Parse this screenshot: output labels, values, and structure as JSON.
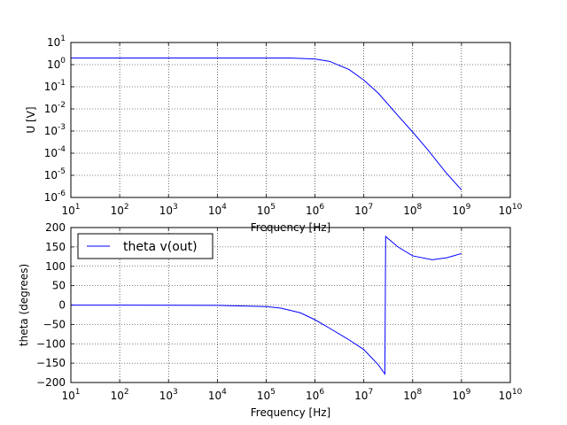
{
  "chart_data": [
    {
      "type": "line",
      "xlabel": "Frequency [Hz]",
      "ylabel": "U [V]",
      "xscale": "log",
      "yscale": "log",
      "xlim": [
        10,
        10000000000
      ],
      "ylim": [
        1e-06,
        10
      ],
      "x_ticks": [
        {
          "base": "10",
          "exp": "1"
        },
        {
          "base": "10",
          "exp": "2"
        },
        {
          "base": "10",
          "exp": "3"
        },
        {
          "base": "10",
          "exp": "4"
        },
        {
          "base": "10",
          "exp": "5"
        },
        {
          "base": "10",
          "exp": "6"
        },
        {
          "base": "10",
          "exp": "7"
        },
        {
          "base": "10",
          "exp": "8"
        },
        {
          "base": "10",
          "exp": "9"
        },
        {
          "base": "10",
          "exp": "10"
        }
      ],
      "y_ticks": [
        {
          "base": "10",
          "exp": "-6"
        },
        {
          "base": "10",
          "exp": "-5"
        },
        {
          "base": "10",
          "exp": "-4"
        },
        {
          "base": "10",
          "exp": "-3"
        },
        {
          "base": "10",
          "exp": "-2"
        },
        {
          "base": "10",
          "exp": "-1"
        },
        {
          "base": "10",
          "exp": "0"
        },
        {
          "base": "10",
          "exp": "1"
        }
      ],
      "grid": true,
      "series": [
        {
          "color": "#0000ff",
          "x": [
            10,
            100,
            1000,
            10000,
            100000,
            300000,
            1000000,
            2000000,
            5000000,
            10000000,
            20000000,
            50000000,
            100000000,
            200000000,
            500000000,
            1000000000
          ],
          "y": [
            2,
            2,
            2,
            2,
            2,
            1.99,
            1.8,
            1.4,
            0.6,
            0.2,
            0.05,
            0.005,
            0.0009,
            0.00015,
            1.2e-05,
            2.2e-06
          ]
        }
      ]
    },
    {
      "type": "line",
      "xlabel": "Frequency [Hz]",
      "ylabel": "theta (degrees)",
      "xscale": "log",
      "xlim": [
        10,
        10000000000
      ],
      "ylim": [
        -200,
        200
      ],
      "x_ticks": [
        {
          "base": "10",
          "exp": "1"
        },
        {
          "base": "10",
          "exp": "2"
        },
        {
          "base": "10",
          "exp": "3"
        },
        {
          "base": "10",
          "exp": "4"
        },
        {
          "base": "10",
          "exp": "5"
        },
        {
          "base": "10",
          "exp": "6"
        },
        {
          "base": "10",
          "exp": "7"
        },
        {
          "base": "10",
          "exp": "8"
        },
        {
          "base": "10",
          "exp": "9"
        },
        {
          "base": "10",
          "exp": "10"
        }
      ],
      "y_ticks": [
        -200,
        -150,
        -100,
        -50,
        0,
        50,
        100,
        150,
        200
      ],
      "y_tick_labels": [
        "−200",
        "−150",
        "−100",
        "−50",
        "0",
        "50",
        "100",
        "150",
        "200"
      ],
      "grid": true,
      "legend": {
        "position": "top-left"
      },
      "series": [
        {
          "name": "theta v(out)",
          "color": "#0000ff",
          "x": [
            10,
            100,
            1000,
            10000,
            100000,
            200000,
            500000,
            1000000,
            2000000,
            5000000,
            10000000,
            20000000,
            27000000,
            28000000,
            50000000,
            100000000,
            250000000,
            500000000,
            1000000000
          ],
          "y": [
            -0.3,
            -0.4,
            -0.5,
            -0.8,
            -4,
            -8,
            -20,
            -38,
            -60,
            -90,
            -115,
            -155,
            -178,
            177,
            150,
            127,
            117,
            122,
            133
          ]
        }
      ]
    }
  ]
}
